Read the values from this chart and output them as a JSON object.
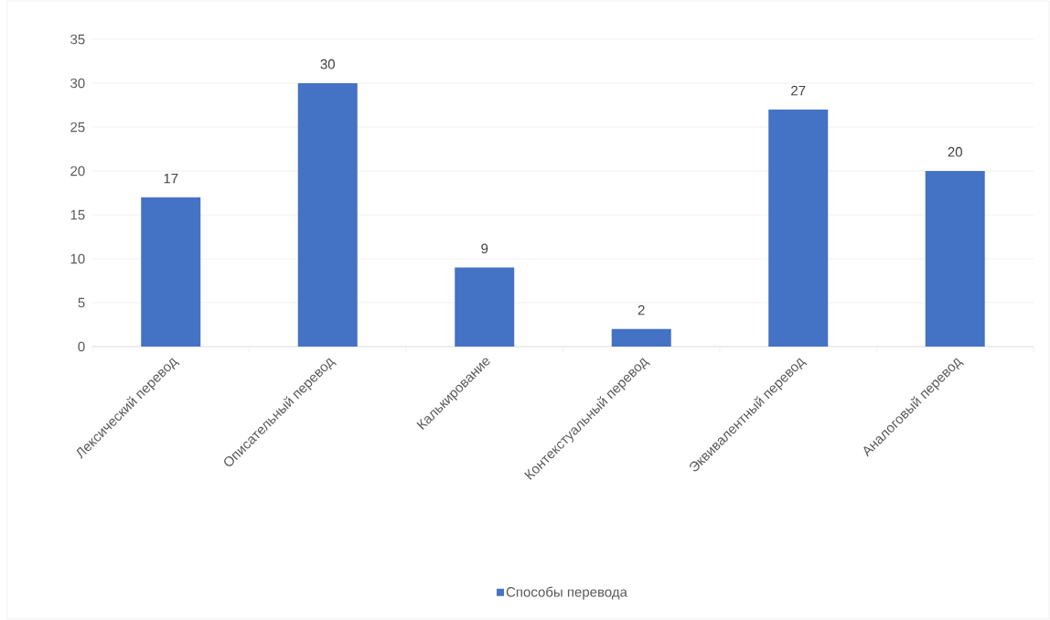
{
  "chart_data": {
    "type": "bar",
    "categories": [
      "Лексический перевод",
      "Описательный перевод",
      "Калькирование",
      "Контекстуальный перевод",
      "Эквивалентный перевод",
      "Аналоговый перевод"
    ],
    "series": [
      {
        "name": "Способы перевода",
        "color": "#4472c4",
        "values": [
          17,
          30,
          9,
          2,
          27,
          20
        ]
      }
    ],
    "ylim": [
      0,
      35
    ],
    "yticks": [
      0,
      5,
      10,
      15,
      20,
      25,
      30,
      35
    ],
    "grid": "y",
    "legend": "bottom",
    "data_labels": true
  }
}
